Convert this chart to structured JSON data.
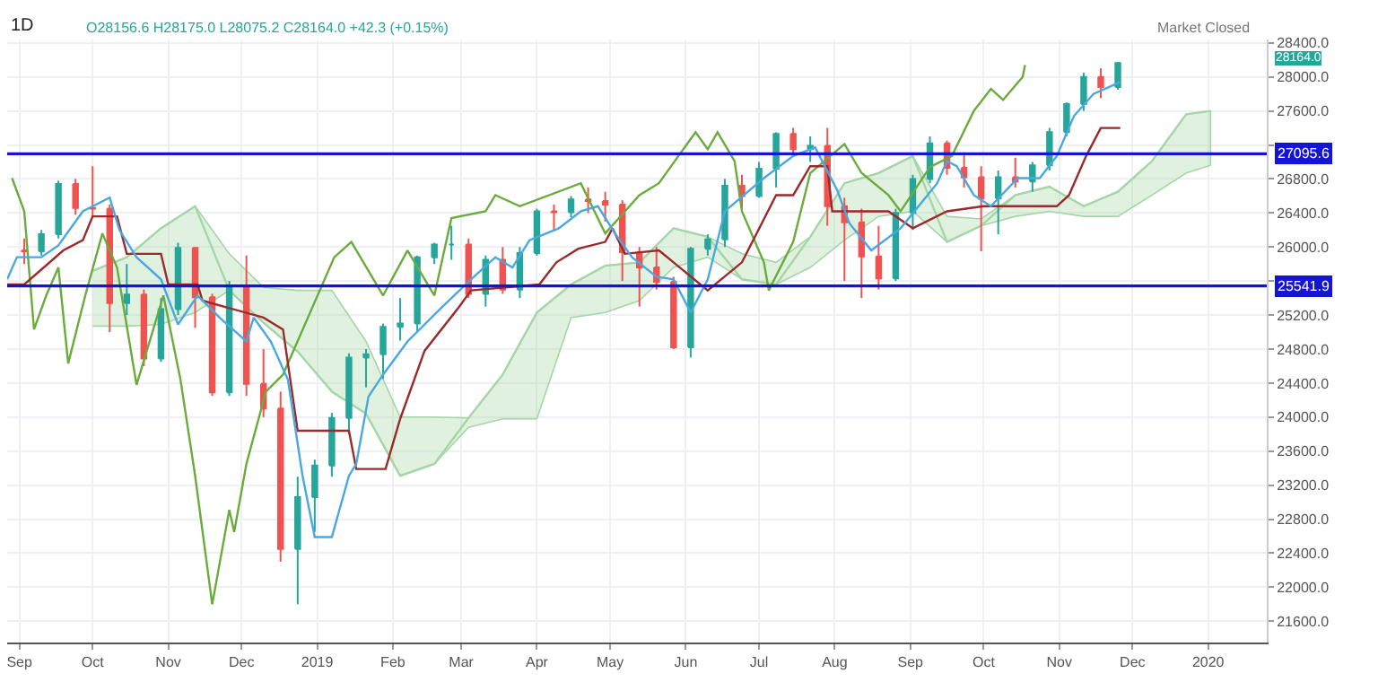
{
  "chart_data": {
    "type": "candlestick",
    "annotations": [
      "1D",
      "O28156.6 H28175.0 L28075.2 C28164.0 +42.3 (+0.15%)",
      "Market Closed",
      "28164.0"
    ],
    "xlim": [
      "2018-08-27",
      "2020-01-25"
    ],
    "xticks": [
      {
        "value": "2018-09-01",
        "label": "Sep"
      },
      {
        "value": "2018-10-01",
        "label": "Oct"
      },
      {
        "value": "2018-11-01",
        "label": "Nov"
      },
      {
        "value": "2018-12-01",
        "label": "Dec"
      },
      {
        "value": "2019-01-01",
        "label": "2019"
      },
      {
        "value": "2019-02-01",
        "label": "Feb"
      },
      {
        "value": "2019-03-01",
        "label": "Mar"
      },
      {
        "value": "2019-04-01",
        "label": "Apr"
      },
      {
        "value": "2019-05-01",
        "label": "May"
      },
      {
        "value": "2019-06-01",
        "label": "Jun"
      },
      {
        "value": "2019-07-01",
        "label": "Jul"
      },
      {
        "value": "2019-08-01",
        "label": "Aug"
      },
      {
        "value": "2019-09-01",
        "label": "Sep"
      },
      {
        "value": "2019-10-01",
        "label": "Oct"
      },
      {
        "value": "2019-11-01",
        "label": "Nov"
      },
      {
        "value": "2019-12-01",
        "label": "Dec"
      },
      {
        "value": "2020-01-01",
        "label": "2020"
      }
    ],
    "ylim": [
      21350,
      28440
    ],
    "yticks": [
      {
        "value": 21600,
        "label": "21600.0"
      },
      {
        "value": 22000,
        "label": "22000.0"
      },
      {
        "value": 22400,
        "label": "22400.0"
      },
      {
        "value": 22800,
        "label": "22800.0"
      },
      {
        "value": 23200,
        "label": "23200.0"
      },
      {
        "value": 23600,
        "label": "23600.0"
      },
      {
        "value": 24000,
        "label": "24000.0"
      },
      {
        "value": 24400,
        "label": "24400.0"
      },
      {
        "value": 24800,
        "label": "24800.0"
      },
      {
        "value": 25200,
        "label": "25200.0"
      },
      {
        "value": 25600,
        "label": null
      },
      {
        "value": 26000,
        "label": "26000.0"
      },
      {
        "value": 26400,
        "label": "26400.0"
      },
      {
        "value": 26800,
        "label": "26800.0"
      },
      {
        "value": 27200,
        "label": null
      },
      {
        "value": 27600,
        "label": "27600.0"
      },
      {
        "value": 28000,
        "label": "28000.0"
      },
      {
        "value": 28400,
        "label": "28400.0"
      }
    ],
    "grid": true,
    "ref_lines": [
      {
        "axis": "y",
        "value": 27095.6,
        "label": "27095.6",
        "color": "#1414d2"
      },
      {
        "axis": "y",
        "value": 25541.9,
        "label": "25541.9",
        "color": "#1414d2"
      }
    ],
    "series": [
      {
        "type": "line",
        "color": "#a5d6a7",
        "x": [
          "2018-10-01",
          "2018-10-15",
          "2018-10-29",
          "2018-11-12",
          "2018-11-26",
          "2018-12-10",
          "2018-12-24",
          "2019-01-07",
          "2019-01-21",
          "2019-02-04",
          "2019-02-18",
          "2019-03-04",
          "2019-03-18",
          "2019-04-01",
          "2019-04-15",
          "2019-04-29",
          "2019-05-13",
          "2019-05-27",
          "2019-06-10",
          "2019-06-24",
          "2019-07-08",
          "2019-07-22",
          "2019-08-05",
          "2019-08-19",
          "2019-09-02",
          "2019-09-16",
          "2019-09-30",
          "2019-10-14",
          "2019-10-28",
          "2019-11-11",
          "2019-11-25",
          "2019-12-09",
          "2019-12-23",
          "2020-01-02"
        ],
        "values": [
          25720,
          25880,
          26220,
          26480,
          25490,
          25110,
          24770,
          24300,
          24040,
          23310,
          23450,
          23990,
          24500,
          25230,
          25560,
          25780,
          25820,
          26220,
          26120,
          25620,
          25560,
          26120,
          26750,
          26870,
          27070,
          26060,
          26250,
          26610,
          26710,
          26480,
          26650,
          27010,
          27560,
          27600
        ],
        "lower": [
          25070,
          25070,
          25090,
          25230,
          25490,
          25110,
          24770,
          24300,
          24040,
          23310,
          23450,
          23880,
          23980,
          23980,
          25170,
          25230,
          25370,
          25760,
          25880,
          25620,
          25560,
          25760,
          26080,
          26360,
          26420,
          26060,
          26250,
          26360,
          26420,
          26360,
          26360,
          26610,
          26870,
          26960
        ],
        "upper": [
          25720,
          25880,
          26220,
          26480,
          25920,
          25525,
          25490,
          25490,
          24890,
          24000,
          24000,
          23990,
          24500,
          25230,
          25560,
          25780,
          25820,
          26220,
          26120,
          25920,
          25820,
          26120,
          26750,
          26870,
          27070,
          26360,
          26330,
          26610,
          26710,
          26480,
          26650,
          27010,
          27560,
          27600
        ]
      },
      {
        "type": "line",
        "color": "#6aab3c",
        "x": [
          "2018-08-29",
          "2018-09-03",
          "2018-09-07",
          "2018-09-12",
          "2018-09-17",
          "2018-09-21",
          "2018-09-28",
          "2018-10-05",
          "2018-10-11",
          "2018-10-19",
          "2018-10-30",
          "2018-11-06",
          "2018-11-12",
          "2018-11-19",
          "2018-11-26",
          "2018-11-28",
          "2018-12-03",
          "2018-12-11",
          "2018-12-18",
          "2019-01-08",
          "2019-01-15",
          "2019-01-28",
          "2019-02-07",
          "2019-02-18",
          "2019-02-25",
          "2019-03-11",
          "2019-03-15",
          "2019-03-25",
          "2019-04-19",
          "2019-04-29",
          "2019-05-13",
          "2019-05-21",
          "2019-06-05",
          "2019-06-10",
          "2019-06-14",
          "2019-06-21",
          "2019-06-24",
          "2019-07-03",
          "2019-07-05",
          "2019-07-15",
          "2019-07-22",
          "2019-08-05",
          "2019-08-12",
          "2019-08-23",
          "2019-08-28",
          "2019-09-09",
          "2019-09-18",
          "2019-09-27",
          "2019-10-04",
          "2019-10-09",
          "2019-10-17",
          "2019-10-18"
        ],
        "values": [
          26810,
          26420,
          25030,
          25430,
          25760,
          24630,
          25430,
          26160,
          25760,
          24380,
          25430,
          24440,
          23310,
          21800,
          22910,
          22650,
          23450,
          24300,
          24500,
          25880,
          26060,
          25430,
          25960,
          25430,
          26340,
          26420,
          26610,
          26480,
          26750,
          26160,
          26610,
          26750,
          27350,
          27150,
          27350,
          27010,
          26420,
          25820,
          25490,
          26060,
          26870,
          27210,
          26870,
          26610,
          26420,
          26940,
          27070,
          27600,
          27860,
          27730,
          28000,
          28140
        ]
      },
      {
        "type": "line",
        "color": "#9b2a2a",
        "x": [
          "2018-08-27",
          "2018-09-03",
          "2018-09-19",
          "2018-09-27",
          "2018-10-01",
          "2018-10-11",
          "2018-10-15",
          "2018-10-29",
          "2018-11-01",
          "2018-11-13",
          "2018-11-15",
          "2018-12-10",
          "2018-12-18",
          "2018-12-24",
          "2019-01-14",
          "2019-01-17",
          "2019-01-29",
          "2019-02-04",
          "2019-02-14",
          "2019-02-28",
          "2019-03-05",
          "2019-04-02",
          "2019-04-09",
          "2019-04-18",
          "2019-04-29",
          "2019-05-02",
          "2019-05-07",
          "2019-05-21",
          "2019-06-10",
          "2019-06-24",
          "2019-07-08",
          "2019-07-15",
          "2019-07-22",
          "2019-07-29",
          "2019-07-31",
          "2019-08-23",
          "2019-09-02",
          "2019-09-16",
          "2019-10-01",
          "2019-10-31",
          "2019-11-05",
          "2019-11-12",
          "2019-11-18",
          "2019-11-26"
        ],
        "values": [
          25560,
          25560,
          25960,
          26080,
          26360,
          26360,
          25920,
          25920,
          25560,
          25560,
          25370,
          25170,
          25030,
          23840,
          23840,
          23390,
          23390,
          23980,
          24780,
          25290,
          25490,
          25560,
          25820,
          25980,
          26060,
          26220,
          25920,
          25960,
          25490,
          25820,
          26610,
          26610,
          26950,
          26950,
          26420,
          26420,
          26220,
          26420,
          26480,
          26480,
          26610,
          27070,
          27400,
          27400
        ]
      },
      {
        "type": "line",
        "color": "#4aa8e0",
        "x": [
          "2018-08-27",
          "2018-08-31",
          "2018-09-10",
          "2018-09-17",
          "2018-09-27",
          "2018-10-08",
          "2018-10-12",
          "2018-10-19",
          "2018-10-29",
          "2018-11-05",
          "2018-11-13",
          "2018-11-22",
          "2018-12-03",
          "2018-12-06",
          "2018-12-13",
          "2018-12-20",
          "2018-12-26",
          "2018-12-31",
          "2019-01-07",
          "2019-01-14",
          "2019-01-17",
          "2019-01-22",
          "2019-01-28",
          "2019-02-07",
          "2019-02-21",
          "2019-03-05",
          "2019-03-15",
          "2019-03-22",
          "2019-03-29",
          "2019-04-10",
          "2019-04-19",
          "2019-04-26",
          "2019-05-03",
          "2019-05-10",
          "2019-05-20",
          "2019-05-27",
          "2019-06-03",
          "2019-06-10",
          "2019-06-17",
          "2019-07-03",
          "2019-07-15",
          "2019-07-24",
          "2019-08-02",
          "2019-08-07",
          "2019-08-16",
          "2019-08-28",
          "2019-09-12",
          "2019-09-16",
          "2019-09-20",
          "2019-09-27",
          "2019-10-04",
          "2019-10-15",
          "2019-10-24",
          "2019-10-31",
          "2019-11-07",
          "2019-11-15",
          "2019-11-26"
        ],
        "values": [
          25620,
          25880,
          25880,
          26020,
          26420,
          26580,
          26200,
          25880,
          25620,
          25090,
          25430,
          25170,
          24890,
          25170,
          24890,
          24440,
          23310,
          22590,
          22590,
          23310,
          23450,
          24240,
          24500,
          24890,
          25290,
          25620,
          25880,
          25760,
          26080,
          26220,
          26420,
          26480,
          26160,
          25880,
          25650,
          25620,
          25230,
          25620,
          26420,
          26810,
          27070,
          27170,
          26670,
          26280,
          25960,
          26220,
          26750,
          27010,
          26950,
          26610,
          26480,
          26810,
          26810,
          27070,
          27540,
          27800,
          27940
        ]
      },
      {
        "x": [
          "2018-09-03",
          "2018-09-10",
          "2018-09-17",
          "2018-09-24",
          "2018-10-01",
          "2018-10-08",
          "2018-10-15",
          "2018-10-22",
          "2018-10-29",
          "2018-11-05",
          "2018-11-12",
          "2018-11-19",
          "2018-11-26",
          "2018-12-03",
          "2018-12-10",
          "2018-12-17",
          "2018-12-24",
          "2018-12-31",
          "2019-01-07",
          "2019-01-14",
          "2019-01-21",
          "2019-01-28",
          "2019-02-04",
          "2019-02-11",
          "2019-02-18",
          "2019-02-25",
          "2019-03-04",
          "2019-03-11",
          "2019-03-18",
          "2019-03-25",
          "2019-04-01",
          "2019-04-08",
          "2019-04-15",
          "2019-04-22",
          "2019-04-29",
          "2019-05-06",
          "2019-05-13",
          "2019-05-20",
          "2019-05-27",
          "2019-06-03",
          "2019-06-10",
          "2019-06-17",
          "2019-06-24",
          "2019-07-01",
          "2019-07-08",
          "2019-07-15",
          "2019-07-22",
          "2019-07-29",
          "2019-08-05",
          "2019-08-12",
          "2019-08-19",
          "2019-08-26",
          "2019-09-02",
          "2019-09-09",
          "2019-09-16",
          "2019-09-23",
          "2019-09-30",
          "2019-10-07",
          "2019-10-14",
          "2019-10-21",
          "2019-10-28",
          "2019-11-04",
          "2019-11-11",
          "2019-11-18",
          "2019-11-25"
        ],
        "ohlc": [
          [
            25960,
            26100,
            25800,
            25950
          ],
          [
            25950,
            26200,
            25900,
            26150
          ],
          [
            26150,
            26780,
            26100,
            26740
          ],
          [
            26740,
            26800,
            26380,
            26460
          ],
          [
            26460,
            26950,
            26350,
            26450
          ],
          [
            26450,
            26500,
            25000,
            25340
          ],
          [
            25340,
            25800,
            25200,
            25440
          ],
          [
            25440,
            25500,
            24600,
            24690
          ],
          [
            24690,
            25400,
            24650,
            25270
          ],
          [
            25270,
            26050,
            25200,
            25990
          ],
          [
            25990,
            26000,
            25050,
            25410
          ],
          [
            25410,
            25450,
            24250,
            24290
          ],
          [
            24290,
            25600,
            24250,
            25540
          ],
          [
            25540,
            25900,
            24250,
            24390
          ],
          [
            24390,
            24800,
            24000,
            24100
          ],
          [
            24100,
            24300,
            22300,
            22450
          ],
          [
            22450,
            23300,
            21800,
            23060
          ],
          [
            23060,
            23500,
            22650,
            23430
          ],
          [
            23430,
            24050,
            23300,
            23990
          ],
          [
            23990,
            24750,
            23800,
            24700
          ],
          [
            24700,
            24800,
            24350,
            24740
          ],
          [
            24740,
            25100,
            24450,
            25060
          ],
          [
            25060,
            25400,
            24900,
            25100
          ],
          [
            25100,
            25900,
            25000,
            25880
          ],
          [
            25880,
            26050,
            25800,
            26030
          ],
          [
            26030,
            26250,
            25850,
            26030
          ],
          [
            26030,
            26100,
            25400,
            25450
          ],
          [
            25450,
            25900,
            25300,
            25850
          ],
          [
            25850,
            26000,
            25450,
            25500
          ],
          [
            25500,
            26000,
            25400,
            25930
          ],
          [
            25930,
            26450,
            25900,
            26420
          ],
          [
            26420,
            26500,
            26200,
            26410
          ],
          [
            26410,
            26600,
            26350,
            26560
          ],
          [
            26560,
            26700,
            26400,
            26540
          ],
          [
            26540,
            26650,
            26300,
            26500
          ],
          [
            26500,
            26550,
            25600,
            25940
          ],
          [
            25940,
            26000,
            25300,
            25760
          ],
          [
            25760,
            26000,
            25500,
            25590
          ],
          [
            25590,
            25650,
            24800,
            24820
          ],
          [
            24820,
            26000,
            24700,
            25980
          ],
          [
            25980,
            26150,
            25900,
            26090
          ],
          [
            26090,
            26800,
            26000,
            26720
          ],
          [
            26720,
            26850,
            26450,
            26600
          ],
          [
            26600,
            27000,
            26580,
            26920
          ],
          [
            26920,
            27350,
            26700,
            27330
          ],
          [
            27330,
            27400,
            27100,
            27150
          ],
          [
            27150,
            27300,
            27000,
            27190
          ],
          [
            27190,
            27400,
            26250,
            26480
          ],
          [
            26480,
            26580,
            25600,
            26290
          ],
          [
            26290,
            26450,
            25400,
            25890
          ],
          [
            25890,
            26250,
            25500,
            25630
          ],
          [
            25630,
            26450,
            25600,
            26400
          ],
          [
            26400,
            26850,
            26200,
            26800
          ],
          [
            26800,
            27300,
            26750,
            27220
          ],
          [
            27220,
            27250,
            26850,
            26930
          ],
          [
            26930,
            27100,
            26700,
            26820
          ],
          [
            26820,
            26950,
            25950,
            26570
          ],
          [
            26570,
            26900,
            26150,
            26820
          ],
          [
            26820,
            27050,
            26700,
            26770
          ],
          [
            26770,
            27000,
            26650,
            26960
          ],
          [
            26960,
            27400,
            26900,
            27350
          ],
          [
            27350,
            27700,
            27300,
            27680
          ],
          [
            27680,
            28050,
            27600,
            28000
          ],
          [
            28000,
            28100,
            27750,
            27880
          ],
          [
            27880,
            28175,
            27850,
            28164
          ]
        ]
      }
    ]
  }
}
